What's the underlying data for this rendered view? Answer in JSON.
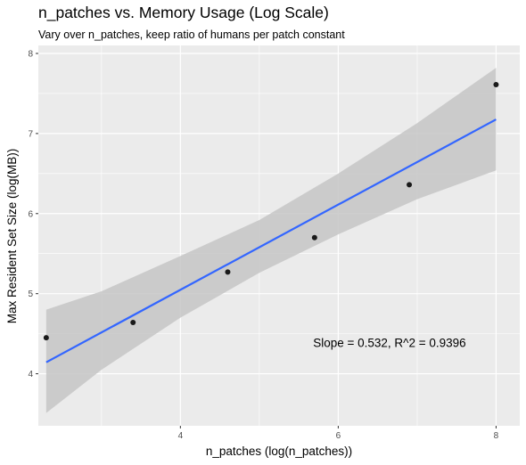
{
  "chart_data": {
    "type": "scatter",
    "title": "n_patches vs. Memory Usage (Log Scale)",
    "subtitle": "Vary over n_patches, keep ratio of humans per patch constant",
    "xlabel": "n_patches (log(n_patches))",
    "ylabel": "Max Resident Set Size (log(MB))",
    "xlim": [
      2.2,
      8.3
    ],
    "ylim": [
      3.35,
      8.1
    ],
    "x_ticks": [
      4,
      6,
      8
    ],
    "y_ticks": [
      4,
      5,
      6,
      7,
      8
    ],
    "x_minor_ticks": [
      3,
      5,
      7
    ],
    "y_minor_ticks": [
      4.5,
      5.5,
      6.5,
      7.5
    ],
    "grid": true,
    "points": [
      {
        "x": 2.3,
        "y": 4.45
      },
      {
        "x": 3.4,
        "y": 4.64
      },
      {
        "x": 4.6,
        "y": 5.27
      },
      {
        "x": 5.7,
        "y": 5.7
      },
      {
        "x": 6.9,
        "y": 6.36
      },
      {
        "x": 8.0,
        "y": 7.61
      }
    ],
    "fit_line": {
      "slope": 0.532,
      "intercept": 2.92,
      "x_range": [
        2.3,
        8.0
      ],
      "color": "#3366ff"
    },
    "confidence_band": [
      {
        "x": 2.3,
        "lo": 3.51,
        "hi": 4.8
      },
      {
        "x": 3.0,
        "lo": 4.05,
        "hi": 5.03
      },
      {
        "x": 4.0,
        "lo": 4.7,
        "hi": 5.47
      },
      {
        "x": 5.0,
        "lo": 5.26,
        "hi": 5.92
      },
      {
        "x": 6.0,
        "lo": 5.74,
        "hi": 6.5
      },
      {
        "x": 7.0,
        "lo": 6.18,
        "hi": 7.13
      },
      {
        "x": 8.0,
        "lo": 6.54,
        "hi": 7.82
      }
    ],
    "annotation": {
      "text": "Slope = 0.532, R^2 = 0.9396",
      "x": 6.65,
      "y": 4.39
    },
    "colors": {
      "panel": "#ebebeb",
      "grid": "#ffffff",
      "band": "#c6c6c6",
      "point": "#1a1a1a",
      "line": "#3366ff"
    }
  }
}
